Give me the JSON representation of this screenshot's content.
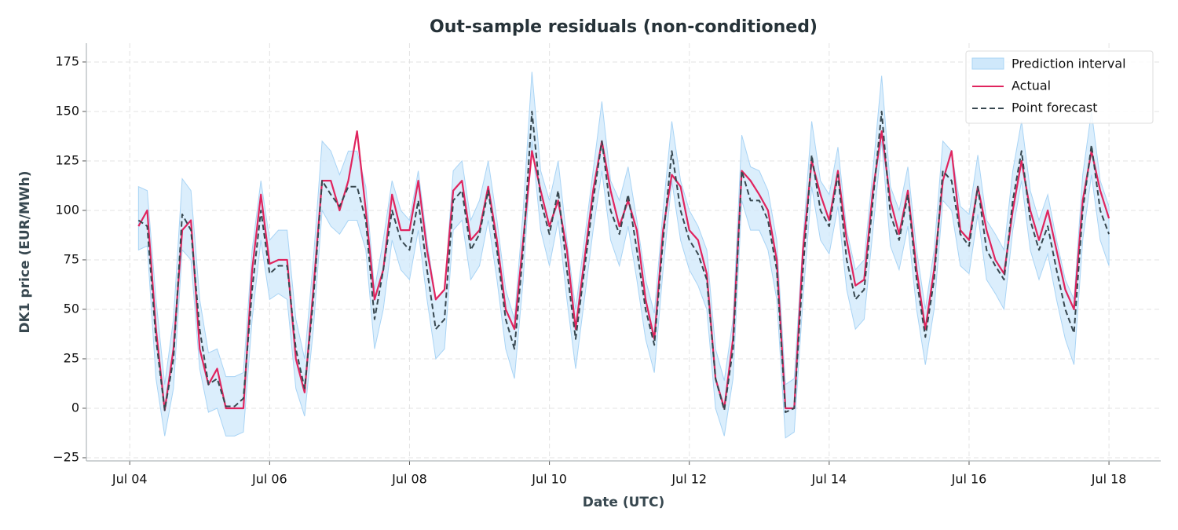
{
  "chart_data": {
    "type": "line",
    "title": "Out-sample residuals (non-conditioned)",
    "xlabel": "Date (UTC)",
    "ylabel": "DK1 price (EUR/MWh)",
    "xlim": [
      3.38,
      18.74
    ],
    "ylim": [
      -26.6,
      184.5
    ],
    "xticks": [
      {
        "value": 4,
        "label": "Jul 04"
      },
      {
        "value": 6,
        "label": "Jul 06"
      },
      {
        "value": 8,
        "label": "Jul 08"
      },
      {
        "value": 10,
        "label": "Jul 10"
      },
      {
        "value": 12,
        "label": "Jul 12"
      },
      {
        "value": 14,
        "label": "Jul 14"
      },
      {
        "value": 16,
        "label": "Jul 16"
      },
      {
        "value": 18,
        "label": "Jul 18"
      }
    ],
    "yticks": [
      {
        "value": -25,
        "label": "−25"
      },
      0,
      25,
      50,
      75,
      100,
      125,
      150,
      175
    ],
    "grid": true,
    "legend": "upper right",
    "x": [
      4.125,
      4.25,
      4.375,
      4.5,
      4.625,
      4.75,
      4.875,
      5,
      5.125,
      5.25,
      5.375,
      5.5,
      5.625,
      5.75,
      5.875,
      6,
      6.125,
      6.25,
      6.375,
      6.5,
      6.625,
      6.75,
      6.875,
      7,
      7.125,
      7.25,
      7.375,
      7.5,
      7.625,
      7.75,
      7.875,
      8,
      8.125,
      8.25,
      8.375,
      8.5,
      8.625,
      8.75,
      8.875,
      9,
      9.125,
      9.25,
      9.375,
      9.5,
      9.625,
      9.75,
      9.875,
      10,
      10.125,
      10.25,
      10.375,
      10.5,
      10.625,
      10.75,
      10.875,
      11,
      11.125,
      11.25,
      11.375,
      11.5,
      11.625,
      11.75,
      11.875,
      12,
      12.125,
      12.25,
      12.375,
      12.5,
      12.625,
      12.75,
      12.875,
      13,
      13.125,
      13.25,
      13.375,
      13.5,
      13.625,
      13.75,
      13.875,
      14,
      14.125,
      14.25,
      14.375,
      14.5,
      14.625,
      14.75,
      14.875,
      15,
      15.125,
      15.25,
      15.375,
      15.5,
      15.625,
      15.75,
      15.875,
      16,
      16.125,
      16.25,
      16.375,
      16.5,
      16.625,
      16.75,
      16.875,
      17,
      17.125,
      17.25,
      17.375,
      17.5,
      17.625,
      17.75,
      17.875,
      18
    ],
    "band": {
      "name": "Prediction interval",
      "color": "#cfe8fb",
      "edge": "#a9d4f5",
      "lower": [
        80,
        82,
        15,
        -14,
        10,
        80,
        75,
        20,
        -2,
        0,
        -14,
        -14,
        -12,
        45,
        85,
        55,
        58,
        55,
        10,
        -4,
        40,
        100,
        92,
        88,
        95,
        95,
        80,
        30,
        50,
        85,
        70,
        65,
        90,
        55,
        25,
        30,
        90,
        95,
        65,
        72,
        95,
        65,
        30,
        15,
        65,
        135,
        90,
        72,
        95,
        55,
        20,
        55,
        90,
        120,
        85,
        72,
        92,
        65,
        35,
        18,
        70,
        115,
        85,
        70,
        62,
        50,
        0,
        -14,
        15,
        105,
        90,
        90,
        80,
        55,
        -15,
        -12,
        55,
        112,
        85,
        78,
        102,
        60,
        40,
        45,
        90,
        135,
        82,
        70,
        92,
        50,
        22,
        50,
        105,
        100,
        72,
        68,
        98,
        65,
        58,
        50,
        90,
        115,
        80,
        65,
        78,
        55,
        35,
        22,
        85,
        118,
        85,
        72
      ],
      "upper": [
        112,
        110,
        55,
        12,
        45,
        116,
        110,
        55,
        28,
        30,
        16,
        16,
        18,
        80,
        115,
        85,
        90,
        90,
        45,
        25,
        75,
        135,
        130,
        118,
        130,
        130,
        112,
        60,
        85,
        115,
        100,
        95,
        120,
        85,
        55,
        60,
        120,
        125,
        95,
        105,
        125,
        95,
        60,
        45,
        100,
        170,
        120,
        105,
        125,
        85,
        50,
        85,
        120,
        155,
        115,
        105,
        122,
        95,
        65,
        48,
        100,
        145,
        115,
        100,
        92,
        80,
        30,
        14,
        45,
        138,
        122,
        120,
        110,
        85,
        12,
        15,
        85,
        145,
        115,
        108,
        132,
        90,
        70,
        75,
        120,
        168,
        112,
        100,
        122,
        80,
        50,
        80,
        135,
        130,
        102,
        98,
        128,
        95,
        88,
        80,
        120,
        145,
        110,
        95,
        108,
        85,
        65,
        55,
        118,
        150,
        115,
        102
      ]
    },
    "series": [
      {
        "name": "Actual",
        "color": "#e0245e",
        "dash": false,
        "values": [
          92,
          100,
          40,
          -1,
          30,
          90,
          95,
          30,
          12,
          20,
          0,
          0,
          0,
          70,
          108,
          73,
          75,
          75,
          25,
          8,
          60,
          115,
          115,
          100,
          115,
          140,
          100,
          55,
          70,
          108,
          90,
          90,
          115,
          80,
          55,
          60,
          110,
          115,
          85,
          90,
          112,
          85,
          50,
          40,
          85,
          130,
          110,
          92,
          105,
          80,
          40,
          75,
          110,
          135,
          110,
          92,
          105,
          90,
          55,
          35,
          90,
          118,
          112,
          90,
          85,
          68,
          15,
          0,
          35,
          120,
          115,
          108,
          100,
          75,
          0,
          0,
          80,
          125,
          108,
          95,
          120,
          85,
          62,
          65,
          110,
          140,
          105,
          88,
          110,
          70,
          40,
          70,
          115,
          130,
          90,
          85,
          112,
          90,
          75,
          68,
          100,
          125,
          100,
          85,
          100,
          80,
          60,
          50,
          105,
          130,
          110,
          96
        ]
      },
      {
        "name": "Point forecast",
        "color": "#37474f",
        "dash": true,
        "values": [
          95,
          92,
          35,
          -1,
          25,
          98,
          90,
          40,
          12,
          15,
          1,
          1,
          5,
          60,
          100,
          68,
          72,
          72,
          30,
          10,
          55,
          115,
          108,
          102,
          112,
          112,
          95,
          45,
          70,
          100,
          85,
          80,
          105,
          70,
          40,
          45,
          105,
          110,
          80,
          88,
          110,
          80,
          45,
          30,
          80,
          150,
          105,
          88,
          110,
          70,
          35,
          70,
          105,
          135,
          100,
          88,
          108,
          80,
          50,
          32,
          85,
          130,
          100,
          85,
          78,
          65,
          15,
          -1,
          30,
          120,
          105,
          105,
          95,
          70,
          -2,
          0,
          70,
          128,
          100,
          92,
          118,
          75,
          55,
          60,
          105,
          150,
          98,
          85,
          108,
          65,
          36,
          65,
          120,
          115,
          88,
          82,
          112,
          80,
          72,
          65,
          105,
          130,
          95,
          80,
          92,
          70,
          50,
          38,
          100,
          133,
          100,
          88
        ]
      }
    ]
  }
}
